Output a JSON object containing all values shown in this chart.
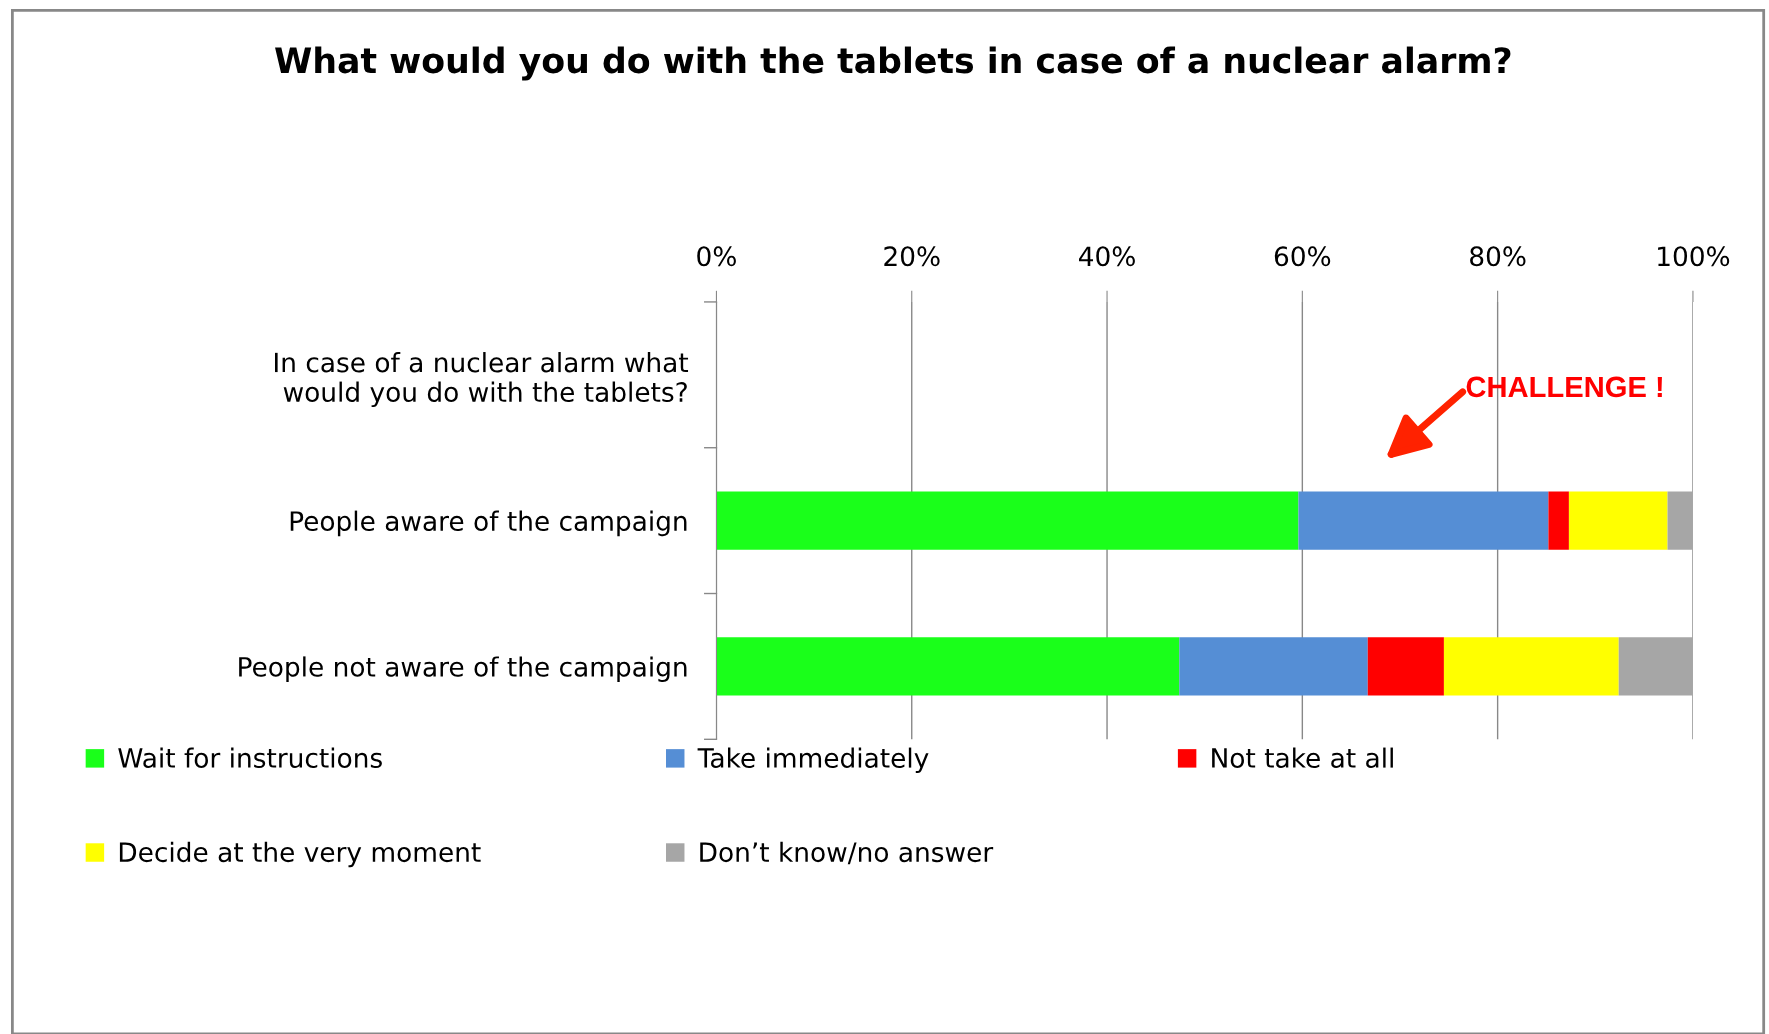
{
  "chart_data": {
    "type": "bar",
    "orientation": "horizontal",
    "stacked": true,
    "title": "What would you do with the tablets in case of a nuclear alarm?",
    "categories": [
      "In case of a nuclear alarm what would you do with the tablets?",
      "People aware of the campaign",
      "People not aware of the campaign"
    ],
    "series": [
      {
        "name": "Wait for instructions",
        "color": "#1aff1a",
        "values": [
          null,
          59.6,
          47.4
        ]
      },
      {
        "name": "Take immediately",
        "color": "#558ed5",
        "values": [
          null,
          25.6,
          19.3
        ]
      },
      {
        "name": "Not take at all",
        "color": "#ff0000",
        "values": [
          null,
          2.1,
          7.8
        ]
      },
      {
        "name": "Decide at the very moment",
        "color": "#ffff00",
        "values": [
          null,
          10.1,
          17.9
        ]
      },
      {
        "name": "Don’t know/no answer",
        "color": "#a6a6a6",
        "values": [
          null,
          2.6,
          7.6
        ]
      }
    ],
    "xlim": [
      0,
      100
    ],
    "xticks": [
      {
        "value": 0,
        "label": "0%"
      },
      {
        "value": 20,
        "label": "20%"
      },
      {
        "value": 40,
        "label": "40%"
      },
      {
        "value": 60,
        "label": "60%"
      },
      {
        "value": 80,
        "label": "80%"
      },
      {
        "value": 100,
        "label": "100%"
      }
    ],
    "grid": "x",
    "legend": "bottom",
    "annotations": [
      "CHALLENGE !"
    ]
  }
}
